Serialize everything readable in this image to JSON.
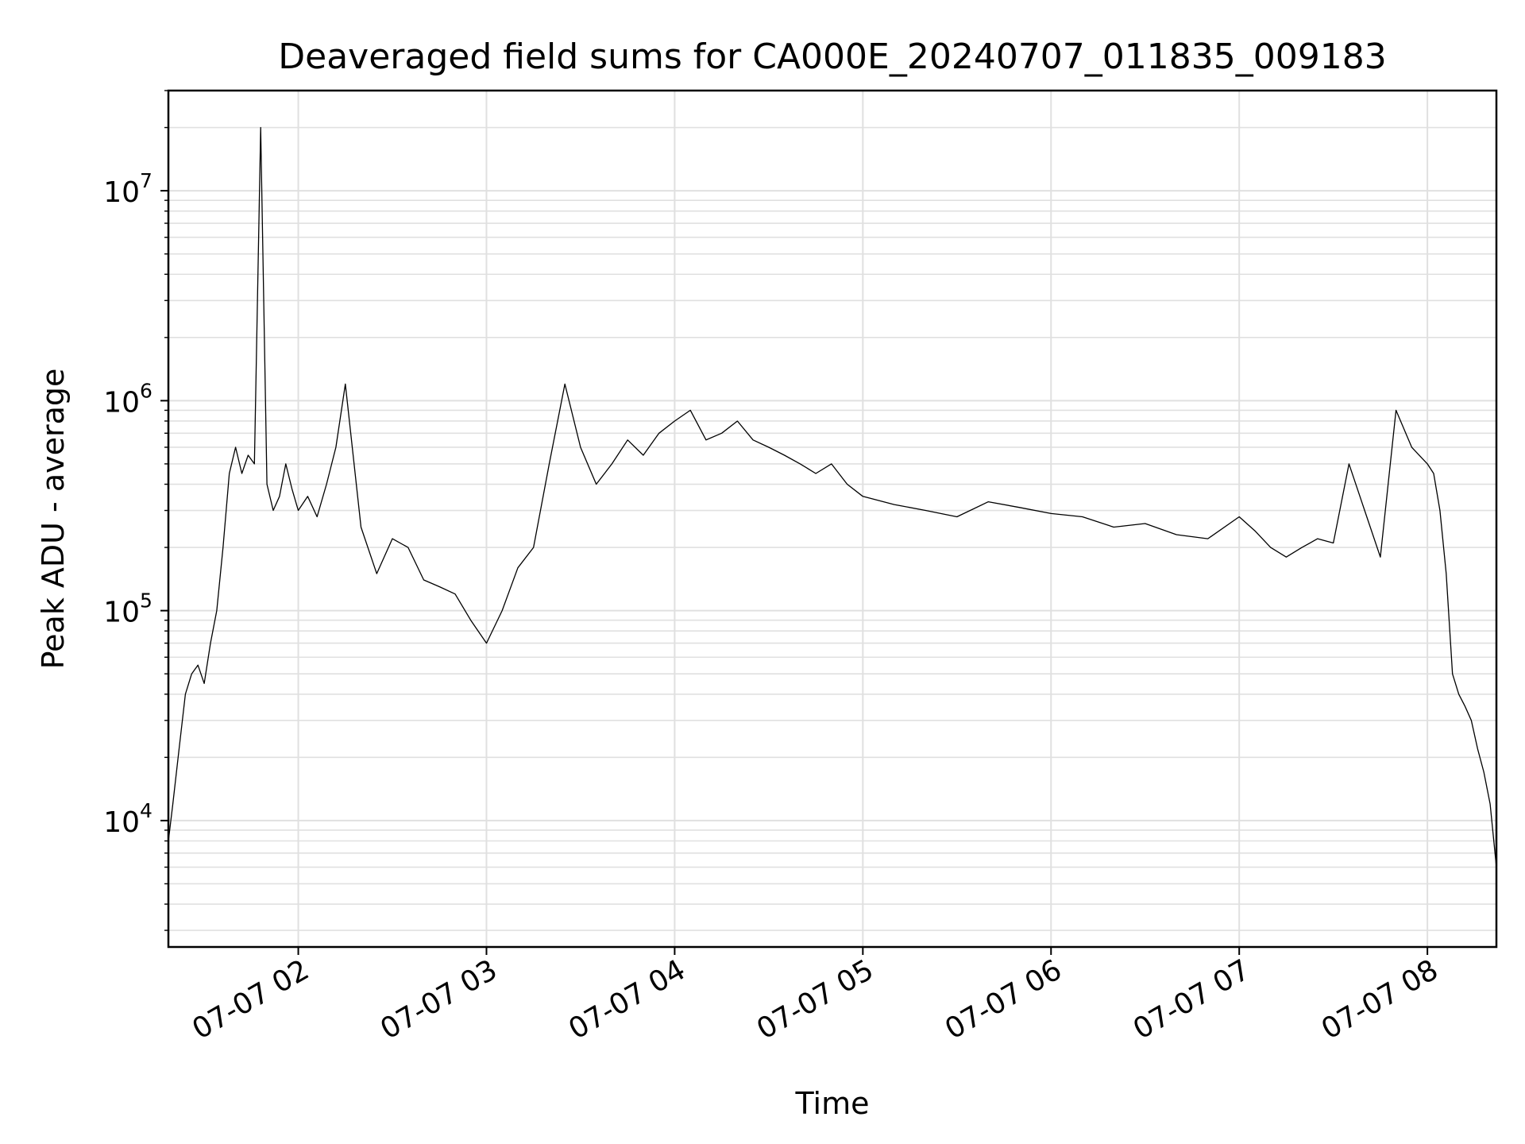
{
  "chart_data": {
    "type": "line",
    "title": "Deaveraged field sums for CA000E_20240707_011835_009183",
    "xlabel": "Time",
    "ylabel": "Peak ADU - average",
    "yscale": "log",
    "grid": "on",
    "legend": "none",
    "line_color": "#000000",
    "grid_color": "#e0e0e0",
    "xlim": [
      "2024-07-07 01:18:35",
      "2024-07-07 08:22:00"
    ],
    "ylim": [
      2500,
      30000000
    ],
    "x_ticks": [
      "2024-07-07 02:00",
      "2024-07-07 03:00",
      "2024-07-07 04:00",
      "2024-07-07 05:00",
      "2024-07-07 06:00",
      "2024-07-07 07:00",
      "2024-07-07 08:00"
    ],
    "x_tick_labels": [
      "07-07 02",
      "07-07 03",
      "07-07 04",
      "07-07 05",
      "07-07 06",
      "07-07 07",
      "07-07 08"
    ],
    "y_ticks": [
      10000,
      100000,
      1000000,
      10000000
    ],
    "y_tick_labels": [
      {
        "base": "10",
        "exp": "4"
      },
      {
        "base": "10",
        "exp": "5"
      },
      {
        "base": "10",
        "exp": "6"
      },
      {
        "base": "10",
        "exp": "7"
      }
    ],
    "series": [
      {
        "x": [
          "2024-07-07 01:18:35",
          "2024-07-07 01:20",
          "2024-07-07 01:22",
          "2024-07-07 01:24",
          "2024-07-07 01:26",
          "2024-07-07 01:28",
          "2024-07-07 01:30",
          "2024-07-07 01:32",
          "2024-07-07 01:34",
          "2024-07-07 01:36",
          "2024-07-07 01:38",
          "2024-07-07 01:40",
          "2024-07-07 01:42",
          "2024-07-07 01:44",
          "2024-07-07 01:46",
          "2024-07-07 01:48",
          "2024-07-07 01:50",
          "2024-07-07 01:52",
          "2024-07-07 01:54",
          "2024-07-07 01:56",
          "2024-07-07 01:58",
          "2024-07-07 02:00",
          "2024-07-07 02:03",
          "2024-07-07 02:06",
          "2024-07-07 02:09",
          "2024-07-07 02:12",
          "2024-07-07 02:15",
          "2024-07-07 02:20",
          "2024-07-07 02:25",
          "2024-07-07 02:30",
          "2024-07-07 02:35",
          "2024-07-07 02:40",
          "2024-07-07 02:45",
          "2024-07-07 02:50",
          "2024-07-07 02:55",
          "2024-07-07 03:00",
          "2024-07-07 03:05",
          "2024-07-07 03:10",
          "2024-07-07 03:15",
          "2024-07-07 03:20",
          "2024-07-07 03:25",
          "2024-07-07 03:30",
          "2024-07-07 03:35",
          "2024-07-07 03:40",
          "2024-07-07 03:45",
          "2024-07-07 03:50",
          "2024-07-07 03:55",
          "2024-07-07 04:00",
          "2024-07-07 04:05",
          "2024-07-07 04:10",
          "2024-07-07 04:15",
          "2024-07-07 04:20",
          "2024-07-07 04:25",
          "2024-07-07 04:30",
          "2024-07-07 04:35",
          "2024-07-07 04:40",
          "2024-07-07 04:45",
          "2024-07-07 04:50",
          "2024-07-07 04:55",
          "2024-07-07 05:00",
          "2024-07-07 05:10",
          "2024-07-07 05:20",
          "2024-07-07 05:30",
          "2024-07-07 05:40",
          "2024-07-07 05:50",
          "2024-07-07 06:00",
          "2024-07-07 06:10",
          "2024-07-07 06:20",
          "2024-07-07 06:30",
          "2024-07-07 06:40",
          "2024-07-07 06:50",
          "2024-07-07 07:00",
          "2024-07-07 07:05",
          "2024-07-07 07:10",
          "2024-07-07 07:15",
          "2024-07-07 07:20",
          "2024-07-07 07:25",
          "2024-07-07 07:30",
          "2024-07-07 07:35",
          "2024-07-07 07:40",
          "2024-07-07 07:45",
          "2024-07-07 07:50",
          "2024-07-07 07:55",
          "2024-07-07 08:00",
          "2024-07-07 08:02",
          "2024-07-07 08:04",
          "2024-07-07 08:06",
          "2024-07-07 08:08",
          "2024-07-07 08:10",
          "2024-07-07 08:12",
          "2024-07-07 08:14",
          "2024-07-07 08:16",
          "2024-07-07 08:18",
          "2024-07-07 08:20",
          "2024-07-07 08:22"
        ],
        "y": [
          8000,
          12000,
          22000,
          40000,
          50000,
          55000,
          45000,
          70000,
          100000,
          200000,
          450000,
          600000,
          450000,
          550000,
          500000,
          20000000,
          400000,
          300000,
          350000,
          500000,
          380000,
          300000,
          350000,
          280000,
          400000,
          600000,
          1200000,
          250000,
          150000,
          220000,
          200000,
          140000,
          130000,
          120000,
          90000,
          70000,
          100000,
          160000,
          200000,
          500000,
          1200000,
          600000,
          400000,
          500000,
          650000,
          550000,
          700000,
          800000,
          900000,
          650000,
          700000,
          800000,
          650000,
          600000,
          550000,
          500000,
          450000,
          500000,
          400000,
          350000,
          320000,
          300000,
          280000,
          330000,
          310000,
          290000,
          280000,
          250000,
          260000,
          230000,
          220000,
          280000,
          240000,
          200000,
          180000,
          200000,
          220000,
          210000,
          500000,
          300000,
          180000,
          900000,
          600000,
          500000,
          450000,
          300000,
          150000,
          50000,
          40000,
          35000,
          30000,
          22000,
          17000,
          12000,
          6000
        ]
      }
    ]
  }
}
